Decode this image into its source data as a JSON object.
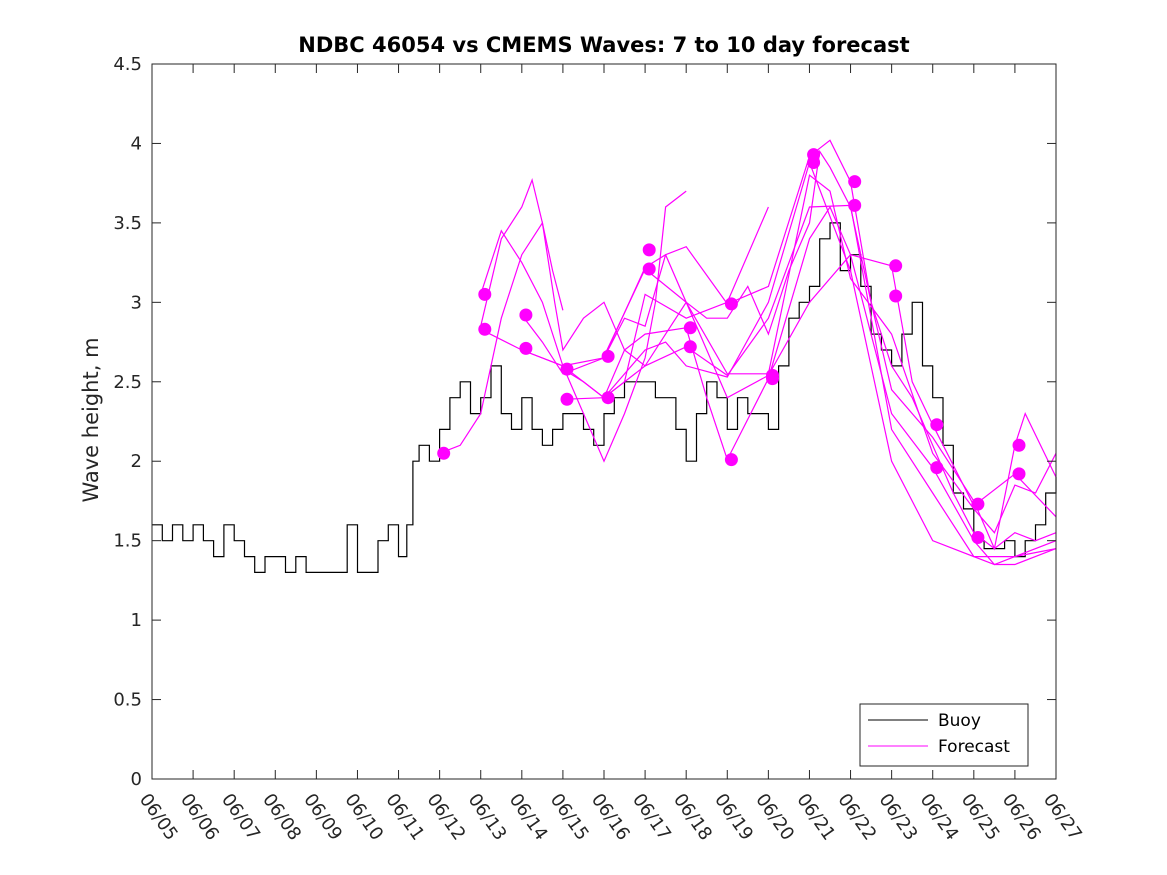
{
  "chart_data": {
    "type": "line",
    "title": "NDBC 46054 vs CMEMS Waves: 7 to 10 day forecast",
    "xlabel": "",
    "ylabel": "Wave height, m",
    "ylim": [
      0,
      4.5
    ],
    "yticks": [
      "0",
      "0.5",
      "1",
      "1.5",
      "2",
      "2.5",
      "3",
      "3.5",
      "4",
      "4.5"
    ],
    "xlim": [
      0,
      22
    ],
    "xticks": [
      "06/05",
      "06/06",
      "06/07",
      "06/08",
      "06/09",
      "06/10",
      "06/11",
      "06/12",
      "06/13",
      "06/14",
      "06/15",
      "06/16",
      "06/17",
      "06/18",
      "06/19",
      "06/20",
      "06/21",
      "06/22",
      "06/23",
      "06/24",
      "06/25",
      "06/26",
      "06/27"
    ],
    "grid": false,
    "legend_position": "bottom-right",
    "colors": {
      "buoy": "#000000",
      "forecast": "#ff00ff"
    },
    "series": [
      {
        "name": "Buoy",
        "points": [
          [
            0.0,
            1.6
          ],
          [
            0.25,
            1.5
          ],
          [
            0.5,
            1.6
          ],
          [
            0.75,
            1.5
          ],
          [
            1.0,
            1.6
          ],
          [
            1.25,
            1.5
          ],
          [
            1.5,
            1.4
          ],
          [
            1.75,
            1.6
          ],
          [
            2.0,
            1.5
          ],
          [
            2.25,
            1.4
          ],
          [
            2.5,
            1.3
          ],
          [
            2.75,
            1.4
          ],
          [
            3.0,
            1.4
          ],
          [
            3.25,
            1.3
          ],
          [
            3.5,
            1.4
          ],
          [
            3.75,
            1.3
          ],
          [
            4.0,
            1.3
          ],
          [
            4.25,
            1.3
          ],
          [
            4.5,
            1.3
          ],
          [
            4.75,
            1.6
          ],
          [
            5.0,
            1.3
          ],
          [
            5.25,
            1.3
          ],
          [
            5.5,
            1.5
          ],
          [
            5.75,
            1.6
          ],
          [
            6.0,
            1.4
          ],
          [
            6.2,
            1.6
          ],
          [
            6.35,
            2.0
          ],
          [
            6.5,
            2.1
          ],
          [
            6.75,
            2.0
          ],
          [
            7.0,
            2.2
          ],
          [
            7.25,
            2.4
          ],
          [
            7.5,
            2.5
          ],
          [
            7.75,
            2.3
          ],
          [
            8.0,
            2.4
          ],
          [
            8.25,
            2.6
          ],
          [
            8.5,
            2.3
          ],
          [
            8.75,
            2.2
          ],
          [
            9.0,
            2.4
          ],
          [
            9.25,
            2.2
          ],
          [
            9.5,
            2.1
          ],
          [
            9.75,
            2.2
          ],
          [
            10.0,
            2.3
          ],
          [
            10.25,
            2.3
          ],
          [
            10.5,
            2.2
          ],
          [
            10.75,
            2.1
          ],
          [
            11.0,
            2.3
          ],
          [
            11.25,
            2.4
          ],
          [
            11.5,
            2.5
          ],
          [
            11.75,
            2.5
          ],
          [
            12.0,
            2.5
          ],
          [
            12.25,
            2.4
          ],
          [
            12.5,
            2.4
          ],
          [
            12.75,
            2.2
          ],
          [
            13.0,
            2.0
          ],
          [
            13.25,
            2.3
          ],
          [
            13.5,
            2.5
          ],
          [
            13.75,
            2.4
          ],
          [
            14.0,
            2.2
          ],
          [
            14.25,
            2.4
          ],
          [
            14.5,
            2.3
          ],
          [
            14.75,
            2.3
          ],
          [
            15.0,
            2.2
          ],
          [
            15.25,
            2.6
          ],
          [
            15.5,
            2.9
          ],
          [
            15.75,
            3.0
          ],
          [
            16.0,
            3.1
          ],
          [
            16.25,
            3.4
          ],
          [
            16.5,
            3.5
          ],
          [
            16.75,
            3.2
          ],
          [
            17.0,
            3.3
          ],
          [
            17.25,
            3.1
          ],
          [
            17.5,
            2.8
          ],
          [
            17.75,
            2.7
          ],
          [
            18.0,
            2.6
          ],
          [
            18.25,
            2.8
          ],
          [
            18.5,
            3.0
          ],
          [
            18.75,
            2.6
          ],
          [
            19.0,
            2.4
          ],
          [
            19.25,
            2.1
          ],
          [
            19.5,
            1.8
          ],
          [
            19.75,
            1.7
          ],
          [
            20.0,
            1.5
          ],
          [
            20.25,
            1.45
          ],
          [
            20.5,
            1.45
          ],
          [
            20.75,
            1.5
          ],
          [
            21.0,
            1.4
          ],
          [
            21.25,
            1.5
          ],
          [
            21.5,
            1.6
          ],
          [
            21.75,
            1.8
          ],
          [
            22.0,
            1.9
          ]
        ]
      },
      {
        "name": "Forecast",
        "runs": [
          [
            [
              7.0,
              2.05
            ],
            [
              7.5,
              2.1
            ],
            [
              8.0,
              2.3
            ],
            [
              8.5,
              2.9
            ],
            [
              9.0,
              3.3
            ],
            [
              9.5,
              3.5
            ],
            [
              9.8,
              3.0
            ],
            [
              10.0,
              2.7
            ],
            [
              10.5,
              2.9
            ],
            [
              11.0,
              3.0
            ],
            [
              11.5,
              2.7
            ],
            [
              12.0,
              2.6
            ],
            [
              12.5,
              2.8
            ],
            [
              13.0,
              3.0
            ],
            [
              13.5,
              2.9
            ],
            [
              14.0,
              2.9
            ],
            [
              14.5,
              3.1
            ],
            [
              15.0,
              2.8
            ],
            [
              15.5,
              3.2
            ],
            [
              16.0,
              3.5
            ],
            [
              16.25,
              3.95
            ],
            [
              16.5,
              3.85
            ],
            [
              17.0,
              3.6
            ],
            [
              17.5,
              3.0
            ],
            [
              18.0,
              2.6
            ],
            [
              18.5,
              2.4
            ],
            [
              19.0,
              2.1
            ],
            [
              19.5,
              1.8
            ],
            [
              20.0,
              1.55
            ],
            [
              20.5,
              1.45
            ],
            [
              21.0,
              1.55
            ],
            [
              21.5,
              1.5
            ],
            [
              22.0,
              1.55
            ]
          ],
          [
            [
              8.0,
              2.85
            ],
            [
              8.5,
              3.4
            ],
            [
              9.0,
              3.6
            ],
            [
              9.25,
              3.77
            ],
            [
              9.5,
              3.5
            ],
            [
              9.75,
              3.2
            ],
            [
              10.0,
              2.95
            ]
          ],
          [
            [
              8.0,
              3.05
            ],
            [
              8.5,
              3.45
            ],
            [
              9.0,
              3.25
            ],
            [
              9.5,
              3.0
            ],
            [
              10.0,
              2.6
            ],
            [
              10.5,
              2.3
            ],
            [
              11.0,
              2.0
            ],
            [
              11.5,
              2.3
            ],
            [
              12.0,
              2.65
            ],
            [
              12.25,
              3.0
            ],
            [
              12.5,
              3.6
            ],
            [
              13.0,
              3.7
            ]
          ],
          [
            [
              8.0,
              2.83
            ],
            [
              9.0,
              2.7
            ],
            [
              10.0,
              2.6
            ],
            [
              11.0,
              2.4
            ],
            [
              11.5,
              2.5
            ],
            [
              12.0,
              3.05
            ],
            [
              13.0,
              2.9
            ],
            [
              14.0,
              3.0
            ],
            [
              15.0,
              3.6
            ]
          ],
          [
            [
              9.0,
              2.92
            ],
            [
              9.5,
              2.75
            ],
            [
              10.0,
              2.55
            ],
            [
              11.0,
              2.65
            ],
            [
              12.0,
              3.22
            ],
            [
              12.5,
              3.3
            ],
            [
              13.0,
              3.0
            ],
            [
              14.0,
              2.55
            ],
            [
              15.0,
              2.55
            ],
            [
              16.0,
              3.8
            ],
            [
              16.5,
              3.7
            ],
            [
              17.0,
              3.15
            ],
            [
              18.0,
              2.8
            ],
            [
              19.0,
              2.05
            ],
            [
              20.0,
              1.7
            ],
            [
              20.5,
              1.55
            ],
            [
              21.0,
              1.85
            ],
            [
              21.5,
              1.8
            ],
            [
              22.0,
              2.05
            ]
          ],
          [
            [
              9.0,
              2.7
            ],
            [
              10.0,
              2.6
            ],
            [
              11.0,
              2.65
            ],
            [
              11.5,
              2.9
            ],
            [
              12.0,
              2.85
            ],
            [
              12.5,
              3.3
            ],
            [
              13.0,
              3.35
            ],
            [
              14.0,
              2.99
            ],
            [
              15.0,
              3.1
            ],
            [
              16.0,
              3.92
            ],
            [
              16.5,
              4.02
            ],
            [
              17.0,
              3.76
            ],
            [
              17.5,
              3.0
            ],
            [
              18.0,
              2.45
            ],
            [
              19.0,
              2.15
            ],
            [
              20.0,
              1.75
            ],
            [
              20.5,
              1.45
            ],
            [
              21.0,
              2.1
            ],
            [
              21.25,
              2.3
            ],
            [
              22.0,
              1.9
            ]
          ],
          [
            [
              10.0,
              2.58
            ],
            [
              10.5,
              2.5
            ],
            [
              11.0,
              2.4
            ],
            [
              11.5,
              2.7
            ],
            [
              12.0,
              2.8
            ],
            [
              13.0,
              2.84
            ],
            [
              13.5,
              2.4
            ],
            [
              14.0,
              2.01
            ],
            [
              15.0,
              2.52
            ],
            [
              16.0,
              3.4
            ],
            [
              16.5,
              3.6
            ],
            [
              17.0,
              3.3
            ],
            [
              18.0,
              2.3
            ],
            [
              19.0,
              1.96
            ],
            [
              20.0,
              1.5
            ],
            [
              20.5,
              1.35
            ],
            [
              21.0,
              1.4
            ],
            [
              22.0,
              1.5
            ]
          ],
          [
            [
              10.0,
              2.39
            ],
            [
              11.0,
              2.4
            ],
            [
              12.0,
              2.6
            ],
            [
              13.0,
              2.72
            ],
            [
              14.0,
              2.54
            ],
            [
              15.0,
              2.9
            ],
            [
              16.0,
              3.6
            ],
            [
              17.0,
              3.61
            ],
            [
              18.0,
              2.2
            ],
            [
              19.0,
              1.8
            ],
            [
              20.0,
              1.4
            ],
            [
              20.5,
              1.35
            ],
            [
              21.0,
              1.35
            ],
            [
              22.0,
              1.45
            ]
          ],
          [
            [
              11.0,
              2.4
            ],
            [
              12.0,
              2.7
            ],
            [
              12.5,
              2.75
            ],
            [
              13.0,
              2.6
            ],
            [
              14.0,
              2.53
            ],
            [
              15.0,
              3.0
            ],
            [
              16.0,
              3.88
            ],
            [
              17.0,
              3.2
            ],
            [
              18.0,
              2.0
            ],
            [
              19.0,
              1.5
            ],
            [
              20.0,
              1.4
            ],
            [
              21.0,
              1.4
            ],
            [
              22.0,
              1.45
            ]
          ],
          [
            [
              11.0,
              2.66
            ],
            [
              12.0,
              3.21
            ],
            [
              13.0,
              3.0
            ],
            [
              14.0,
              2.4
            ],
            [
              15.0,
              2.54
            ],
            [
              16.0,
              3.0
            ],
            [
              17.0,
              3.3
            ],
            [
              18.0,
              3.23
            ],
            [
              18.5,
              2.5
            ],
            [
              19.0,
              2.23
            ],
            [
              20.0,
              1.72
            ],
            [
              21.0,
              1.92
            ],
            [
              22.0,
              1.65
            ]
          ]
        ],
        "markers": [
          [
            7.1,
            2.05
          ],
          [
            8.1,
            3.05
          ],
          [
            8.1,
            2.83
          ],
          [
            9.1,
            2.92
          ],
          [
            9.1,
            2.71
          ],
          [
            10.1,
            2.58
          ],
          [
            10.1,
            2.39
          ],
          [
            11.1,
            2.66
          ],
          [
            11.1,
            2.4
          ],
          [
            12.1,
            3.33
          ],
          [
            12.1,
            3.21
          ],
          [
            13.1,
            2.84
          ],
          [
            13.1,
            2.72
          ],
          [
            14.1,
            2.99
          ],
          [
            14.1,
            2.01
          ],
          [
            15.1,
            2.54
          ],
          [
            15.1,
            2.52
          ],
          [
            16.1,
            3.93
          ],
          [
            16.1,
            3.88
          ],
          [
            17.1,
            3.76
          ],
          [
            17.1,
            3.61
          ],
          [
            18.1,
            3.23
          ],
          [
            18.1,
            3.04
          ],
          [
            19.1,
            2.23
          ],
          [
            19.1,
            1.96
          ],
          [
            20.1,
            1.73
          ],
          [
            20.1,
            1.52
          ],
          [
            21.1,
            2.1
          ],
          [
            21.1,
            1.92
          ]
        ]
      }
    ]
  }
}
